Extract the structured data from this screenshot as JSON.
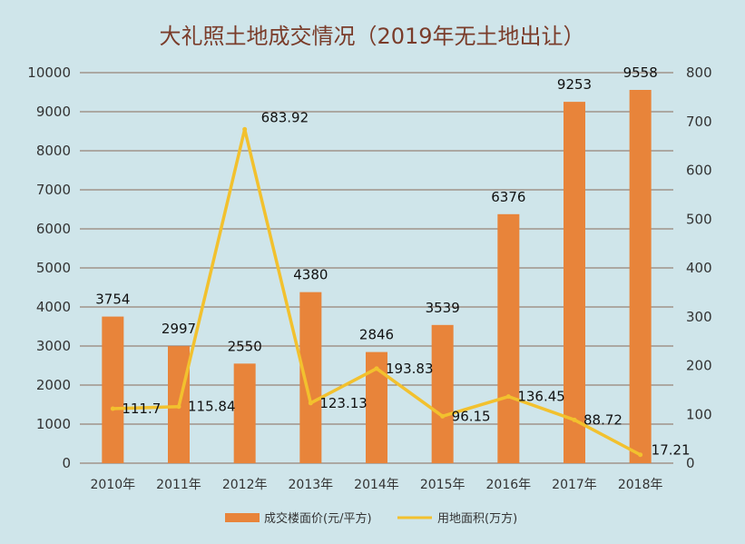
{
  "chart_data": {
    "type": "bar",
    "title": "大礼照土地成交情况（2019年无土地出让）",
    "categories": [
      "2010年",
      "2011年",
      "2012年",
      "2013年",
      "2014年",
      "2015年",
      "2016年",
      "2017年",
      "2018年"
    ],
    "series": [
      {
        "name": "成交楼面价(元/平方)",
        "type": "bar",
        "axis": "left",
        "values": [
          3754,
          2997,
          2550,
          4380,
          2846,
          3539,
          6376,
          9253,
          9558
        ],
        "labels": [
          "3754",
          "2997",
          "2550",
          "4380",
          "2846",
          "3539",
          "6376",
          "9253",
          "9558"
        ],
        "color": "#e8843a"
      },
      {
        "name": "用地面积(万方)",
        "type": "line",
        "axis": "right",
        "values": [
          111.7,
          115.84,
          683.92,
          123.13,
          193.83,
          96.15,
          136.45,
          88.72,
          17.21
        ],
        "labels": [
          "111.7",
          "115.84",
          "683.92",
          "123.13",
          "193.83",
          "96.15",
          "136.45",
          "88.72",
          "17.21"
        ],
        "color": "#f2c12e"
      }
    ],
    "ylim_left": [
      0,
      10000
    ],
    "yticks_left": [
      0,
      1000,
      2000,
      3000,
      4000,
      5000,
      6000,
      7000,
      8000,
      9000,
      10000
    ],
    "ylim_right": [
      0,
      800
    ],
    "yticks_right": [
      0,
      100,
      200,
      300,
      400,
      500,
      600,
      700,
      800
    ],
    "grid": true,
    "legend_position": "bottom"
  }
}
